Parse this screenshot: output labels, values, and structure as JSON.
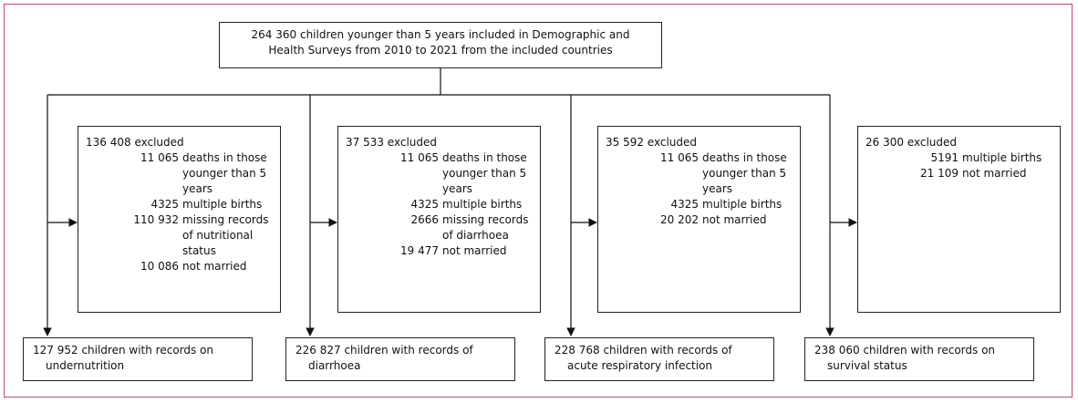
{
  "top": {
    "text": "264 360 children younger than 5 years included in Demographic and Health Surveys from 2010 to 2021 from the included countries"
  },
  "branches": [
    {
      "excluded": {
        "title": "136 408 excluded",
        "items": [
          {
            "number": "11 065",
            "text": "deaths in those younger than 5 years"
          },
          {
            "number": "4325",
            "text": "multiple births"
          },
          {
            "number": "110 932",
            "text": "missing records of nutritional status"
          },
          {
            "number": "10 086",
            "text": "not married"
          }
        ]
      },
      "result": "127 952 children with records on undernutrition"
    },
    {
      "excluded": {
        "title": "37 533 excluded",
        "items": [
          {
            "number": "11 065",
            "text": "deaths in those younger than 5 years"
          },
          {
            "number": "4325",
            "text": "multiple births"
          },
          {
            "number": "2666",
            "text": "missing records of diarrhoea"
          },
          {
            "number": "19 477",
            "text": "not married"
          }
        ]
      },
      "result": "226 827 children with records of diarrhoea"
    },
    {
      "excluded": {
        "title": "35 592 excluded",
        "items": [
          {
            "number": "11 065",
            "text": "deaths in those younger than 5 years"
          },
          {
            "number": "4325",
            "text": "multiple births"
          },
          {
            "number": "20 202",
            "text": "not married"
          }
        ]
      },
      "result": "228 768 children with records of acute respiratory infection"
    },
    {
      "excluded": {
        "title": "26 300 excluded",
        "items": [
          {
            "number": "5191",
            "text": "multiple births"
          },
          {
            "number": "21 109",
            "text": "not married"
          }
        ]
      },
      "result": "238 060 children with records on survival status"
    }
  ]
}
